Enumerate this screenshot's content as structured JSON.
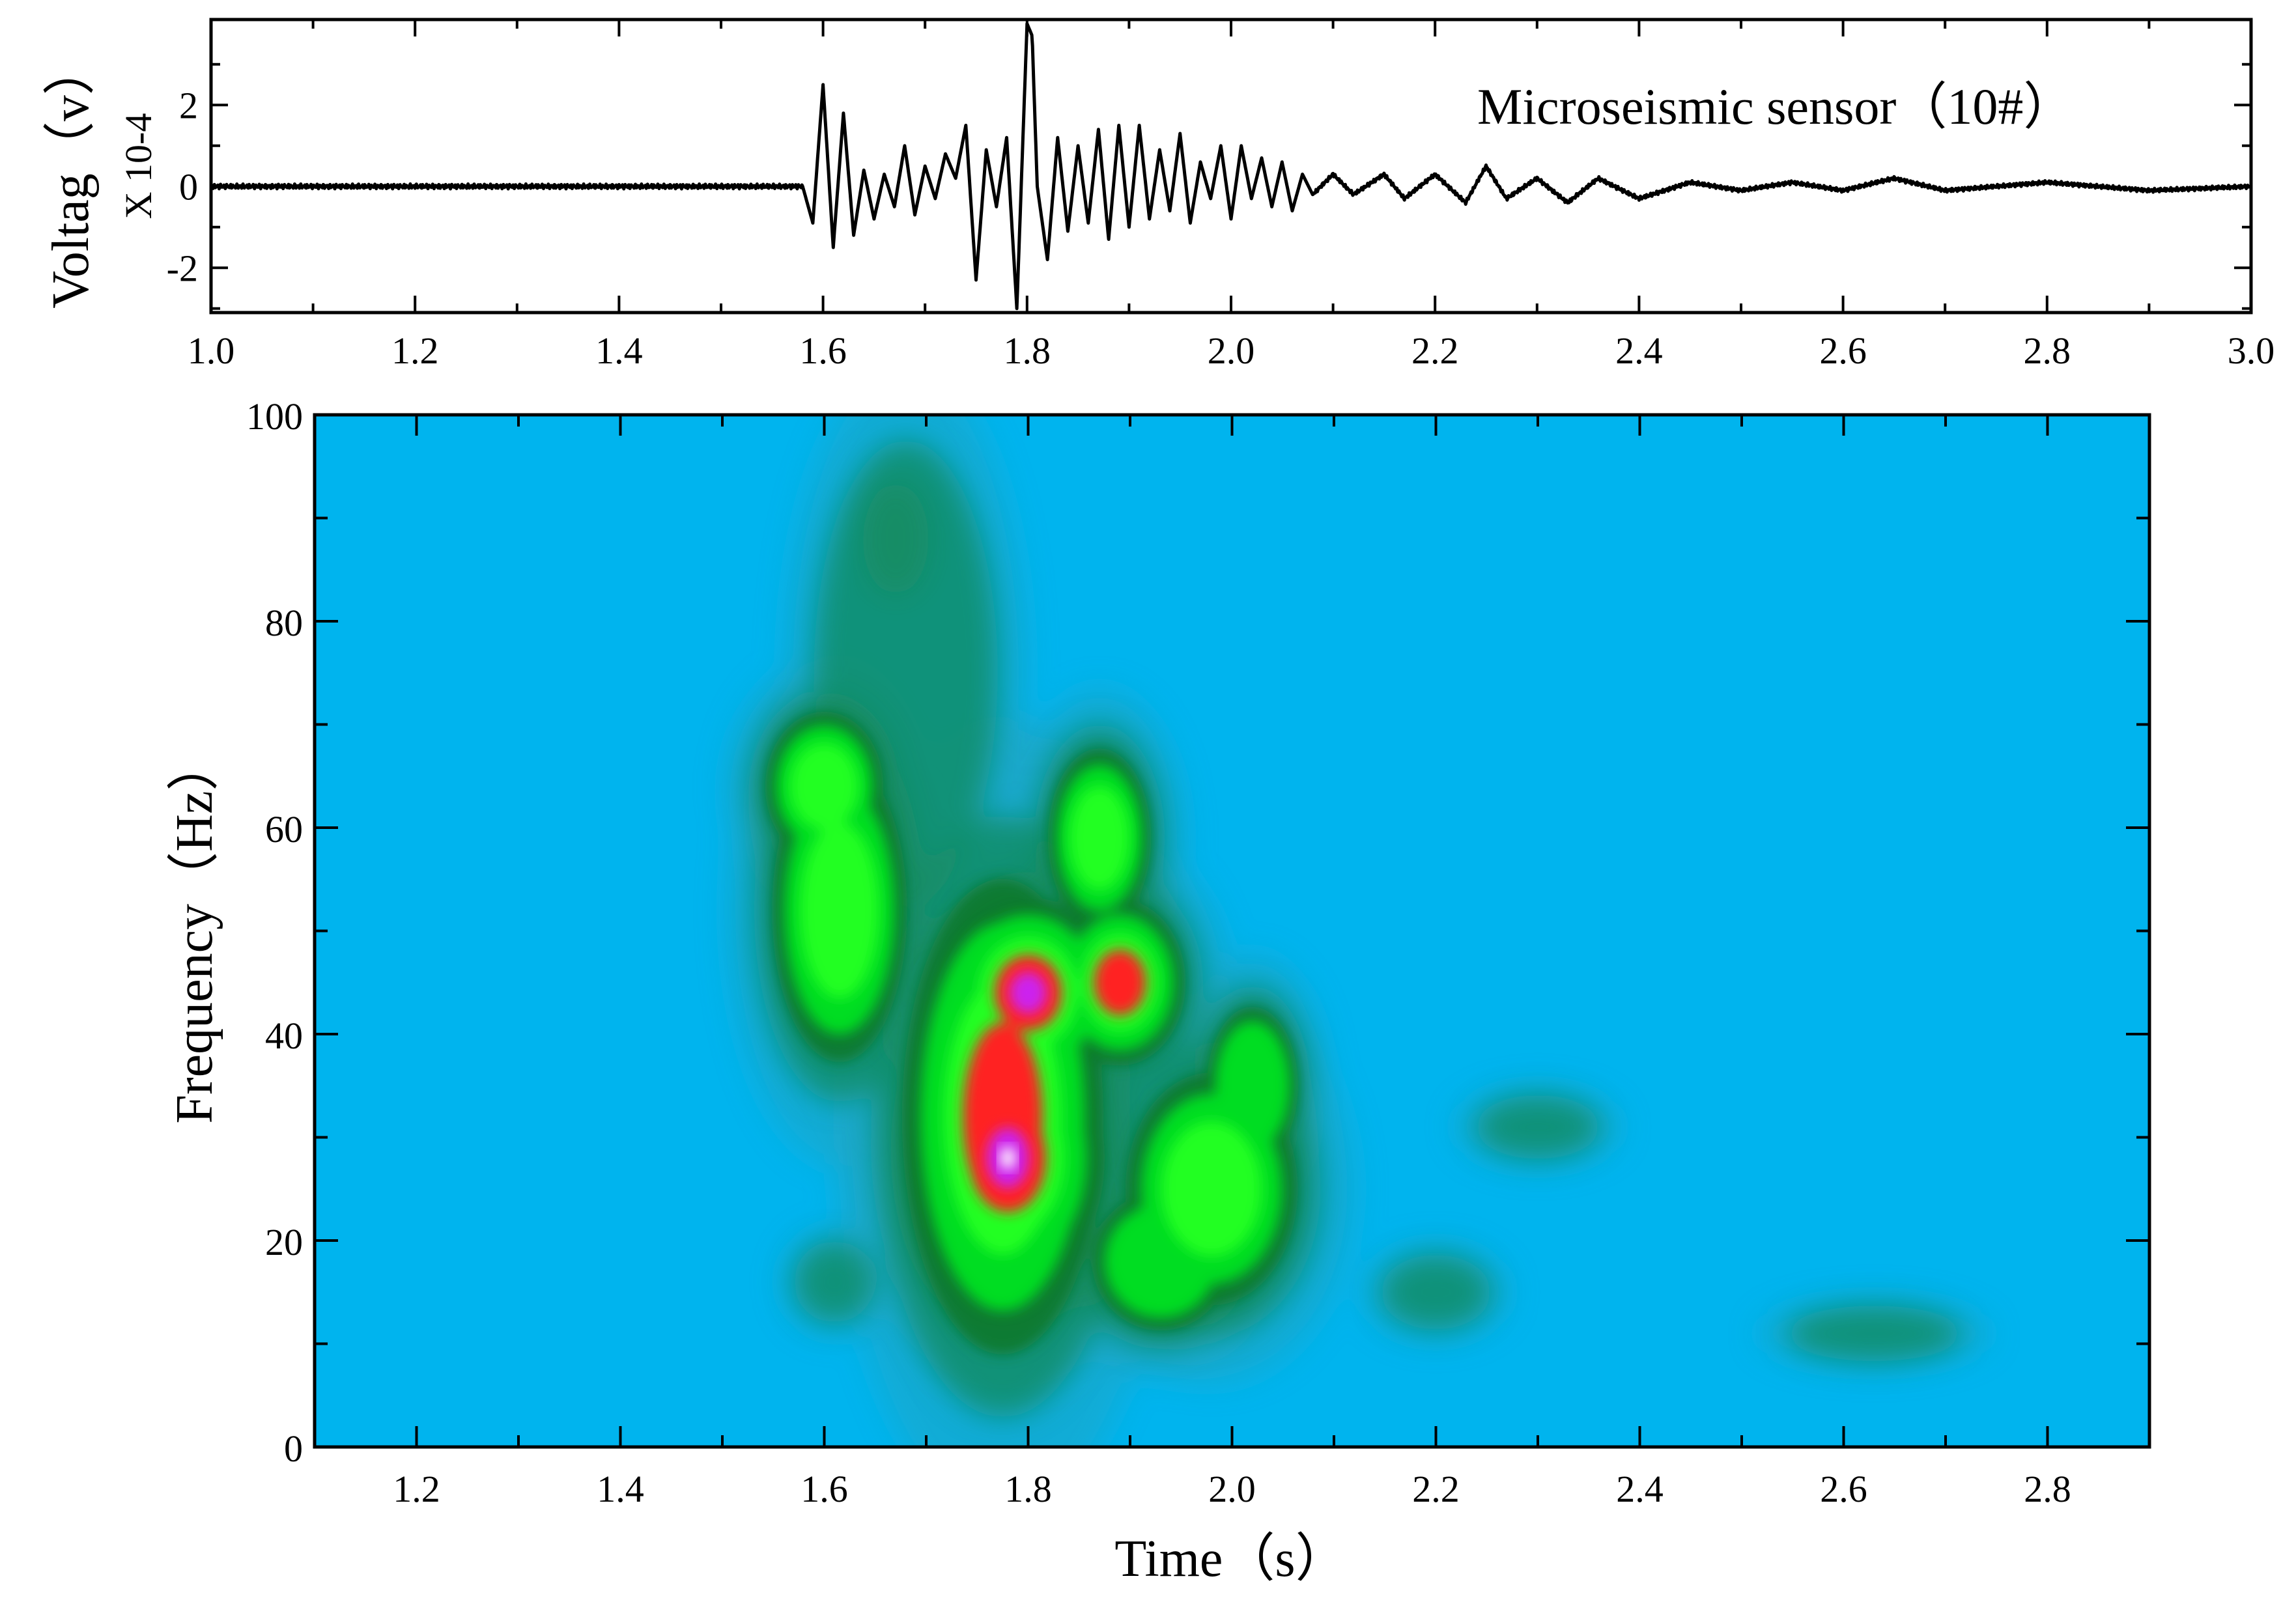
{
  "colors": {
    "background": "#ffffff",
    "axis": "#000000",
    "waveform": "#000000",
    "spectrogram_base": "#00b4ee",
    "spectrogram_scale": [
      "#00b4ee",
      "#1fa6c2",
      "#148c62",
      "#0f7a2e",
      "#00dd22",
      "#22ff22",
      "#ff2222",
      "#cc22ee",
      "#ffffff"
    ]
  },
  "chart_data": [
    {
      "type": "line",
      "title": "",
      "annotation": "Microseismic sensor（10#）",
      "ylabel": "Voltag（v）",
      "yscale_label": "X 10-4",
      "xlabel": "",
      "xlim": [
        1.0,
        3.0
      ],
      "ylim": [
        -3.1,
        4.1
      ],
      "x_ticks": [
        "1.0",
        "1.2",
        "1.4",
        "1.6",
        "1.8",
        "2.0",
        "2.2",
        "2.4",
        "2.6",
        "2.8",
        "3.0"
      ],
      "y_ticks": [
        "-2",
        "0",
        "2"
      ],
      "grid": false,
      "series": [
        {
          "x": [
            1.0,
            1.58,
            1.59,
            1.6,
            1.605,
            1.61,
            1.62,
            1.63,
            1.64,
            1.65,
            1.66,
            1.67,
            1.68,
            1.69,
            1.7,
            1.71,
            1.72,
            1.73,
            1.74,
            1.75,
            1.76,
            1.77,
            1.78,
            1.79,
            1.8,
            1.805,
            1.81,
            1.82,
            1.83,
            1.84,
            1.85,
            1.86,
            1.87,
            1.88,
            1.89,
            1.9,
            1.91,
            1.92,
            1.93,
            1.94,
            1.95,
            1.96,
            1.97,
            1.98,
            1.99,
            2.0,
            2.01,
            2.02,
            2.03,
            2.04,
            2.05,
            2.06,
            2.07,
            2.08,
            2.1,
            2.12,
            2.15,
            2.17,
            2.2,
            2.23,
            2.25,
            2.27,
            2.3,
            2.33,
            2.36,
            2.4,
            2.45,
            2.5,
            2.55,
            2.6,
            2.65,
            2.7,
            2.8,
            2.9,
            3.0
          ],
          "values": [
            0.0,
            0.0,
            -0.9,
            2.5,
            0.5,
            -1.5,
            1.8,
            -1.2,
            0.4,
            -0.8,
            0.3,
            -0.5,
            1.0,
            -0.7,
            0.5,
            -0.3,
            0.8,
            0.2,
            1.5,
            -2.3,
            0.9,
            -0.5,
            1.2,
            -3.0,
            4.0,
            3.7,
            0.0,
            -1.8,
            1.2,
            -1.1,
            1.0,
            -0.9,
            1.4,
            -1.3,
            1.5,
            -1.0,
            1.5,
            -0.8,
            0.9,
            -0.6,
            1.3,
            -0.9,
            0.6,
            -0.3,
            1.0,
            -0.8,
            1.0,
            -0.3,
            0.7,
            -0.5,
            0.6,
            -0.6,
            0.3,
            -0.2,
            0.3,
            -0.2,
            0.3,
            -0.3,
            0.3,
            -0.4,
            0.5,
            -0.3,
            0.2,
            -0.4,
            0.2,
            -0.3,
            0.1,
            -0.1,
            0.1,
            -0.1,
            0.2,
            -0.1,
            0.1,
            -0.1,
            0.0
          ]
        }
      ]
    },
    {
      "type": "heatmap",
      "title": "",
      "xlabel": "Time（s）",
      "ylabel": "Frequency（Hz）",
      "xlim": [
        1.1,
        2.9
      ],
      "ylim": [
        0,
        100
      ],
      "x_ticks": [
        "1.2",
        "1.4",
        "1.6",
        "1.8",
        "2.0",
        "2.2",
        "2.4",
        "2.6",
        "2.8"
      ],
      "y_ticks": [
        "0",
        "20",
        "40",
        "60",
        "80",
        "100"
      ],
      "grid": false,
      "energy_clusters": [
        {
          "t": 1.6,
          "f": 64,
          "width_s": 0.04,
          "width_hz": 5,
          "amp": 0.58
        },
        {
          "t": 1.615,
          "f": 52,
          "width_s": 0.045,
          "width_hz": 10,
          "amp": 0.6
        },
        {
          "t": 1.78,
          "f": 28,
          "width_s": 0.05,
          "width_hz": 7,
          "amp": 1.0
        },
        {
          "t": 1.8,
          "f": 44,
          "width_s": 0.045,
          "width_hz": 5,
          "amp": 0.95
        },
        {
          "t": 1.775,
          "f": 32,
          "width_s": 0.06,
          "width_hz": 14,
          "amp": 0.75
        },
        {
          "t": 1.89,
          "f": 45,
          "width_s": 0.04,
          "width_hz": 5,
          "amp": 0.72
        },
        {
          "t": 1.87,
          "f": 59,
          "width_s": 0.035,
          "width_hz": 6,
          "amp": 0.58
        },
        {
          "t": 1.98,
          "f": 25,
          "width_s": 0.06,
          "width_hz": 8,
          "amp": 0.55
        },
        {
          "t": 1.93,
          "f": 18,
          "width_s": 0.05,
          "width_hz": 5,
          "amp": 0.5
        },
        {
          "t": 2.02,
          "f": 35,
          "width_s": 0.035,
          "width_hz": 6,
          "amp": 0.45
        },
        {
          "t": 1.61,
          "f": 16,
          "width_s": 0.03,
          "width_hz": 3,
          "amp": 0.3
        },
        {
          "t": 2.2,
          "f": 15,
          "width_s": 0.045,
          "width_hz": 3,
          "amp": 0.25
        },
        {
          "t": 2.63,
          "f": 11,
          "width_s": 0.08,
          "width_hz": 2.5,
          "amp": 0.2
        },
        {
          "t": 1.67,
          "f": 88,
          "width_s": 0.03,
          "width_hz": 5,
          "amp": 0.2
        },
        {
          "t": 1.68,
          "f": 75,
          "width_s": 0.08,
          "width_hz": 20,
          "amp": 0.22
        },
        {
          "t": 2.3,
          "f": 31,
          "width_s": 0.06,
          "width_hz": 3,
          "amp": 0.18
        }
      ]
    }
  ]
}
